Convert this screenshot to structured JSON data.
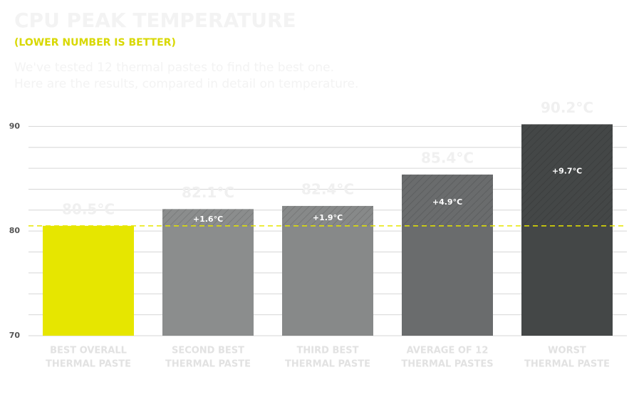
{
  "chart_data": {
    "type": "bar",
    "title": "CPU PEAK TEMPERATURE",
    "subtitle": "(LOWER NUMBER IS BETTER)",
    "description": [
      "We've tested 12 thermal pastes to find the best one.",
      "Here are the results, compared in detail on temperature."
    ],
    "categories": [
      [
        "BEST OVERALL",
        "THERMAL PASTE"
      ],
      [
        "SECOND BEST",
        "THERMAL PASTE"
      ],
      [
        "THIRD BEST",
        "THERMAL PASTE"
      ],
      [
        "AVERAGE OF 12",
        "THERMAL PASTES"
      ],
      [
        "WORST",
        "THERMAL PASTE"
      ]
    ],
    "values": [
      80.5,
      82.1,
      82.4,
      85.4,
      90.2
    ],
    "value_labels": [
      "80.5°C",
      "82.1°C",
      "82.4°C",
      "85.4°C",
      "90.2°C"
    ],
    "colors": [
      "#e6e600",
      "#8b8d8d",
      "#878989",
      "#6a6c6d",
      "#444747"
    ],
    "deltas": [
      1.6,
      1.9,
      4.9,
      9.7
    ],
    "delta_labels": [
      "+1.6°C",
      "+1.9°C",
      "+4.9°C",
      "+9.7°C"
    ],
    "reference_line": 80.5,
    "reference_color": "#e6e600",
    "ylim": [
      70,
      90.5
    ],
    "yticks": [
      70,
      80,
      90
    ],
    "grid_lines": [
      70,
      72,
      74,
      76,
      78,
      80,
      82,
      84,
      86,
      88,
      90
    ],
    "grid": true
  }
}
